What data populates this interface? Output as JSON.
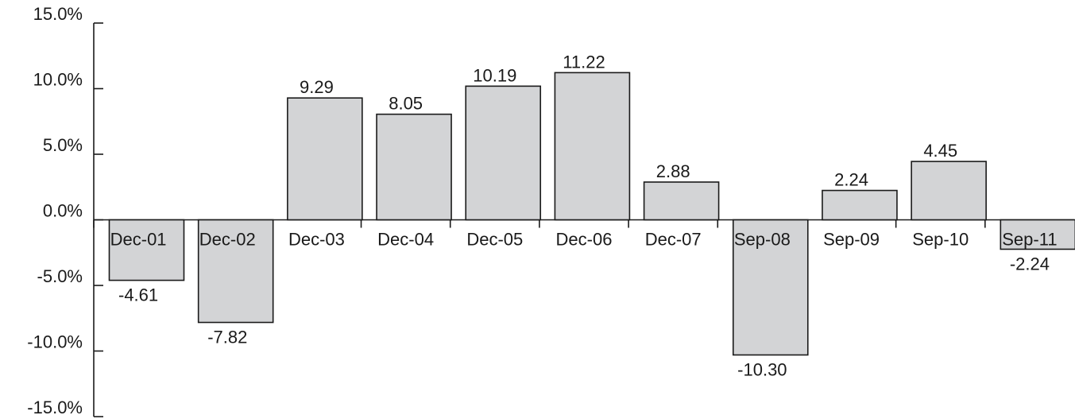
{
  "chart_data": {
    "type": "bar",
    "categories": [
      "Dec-01",
      "Dec-02",
      "Dec-03",
      "Dec-04",
      "Dec-05",
      "Dec-06",
      "Dec-07",
      "Sep-08",
      "Sep-09",
      "Sep-10",
      "Sep-11"
    ],
    "values": [
      -4.61,
      -7.82,
      9.29,
      8.05,
      10.19,
      11.22,
      2.88,
      -10.3,
      2.24,
      4.45,
      -2.24
    ],
    "value_labels": [
      "-4.61",
      "-7.82",
      "9.29",
      "8.05",
      "10.19",
      "11.22",
      "2.88",
      "-10.30",
      "2.24",
      "4.45",
      "-2.24"
    ],
    "title": "",
    "xlabel": "",
    "ylabel": "",
    "ylim": [
      -15,
      15
    ],
    "yticks": [
      15,
      10,
      5,
      0,
      -5,
      -10,
      -15
    ],
    "ytick_labels": [
      "15.0%",
      "10.0%",
      "5.0%",
      "0.0%",
      "-5.0%",
      "-10.0%",
      "-15.0%"
    ],
    "grid": false,
    "legend": "none",
    "colors": {
      "bar_fill": "#d3d4d6",
      "bar_stroke": "#1a1a1a",
      "text": "#1a1a1a"
    }
  }
}
